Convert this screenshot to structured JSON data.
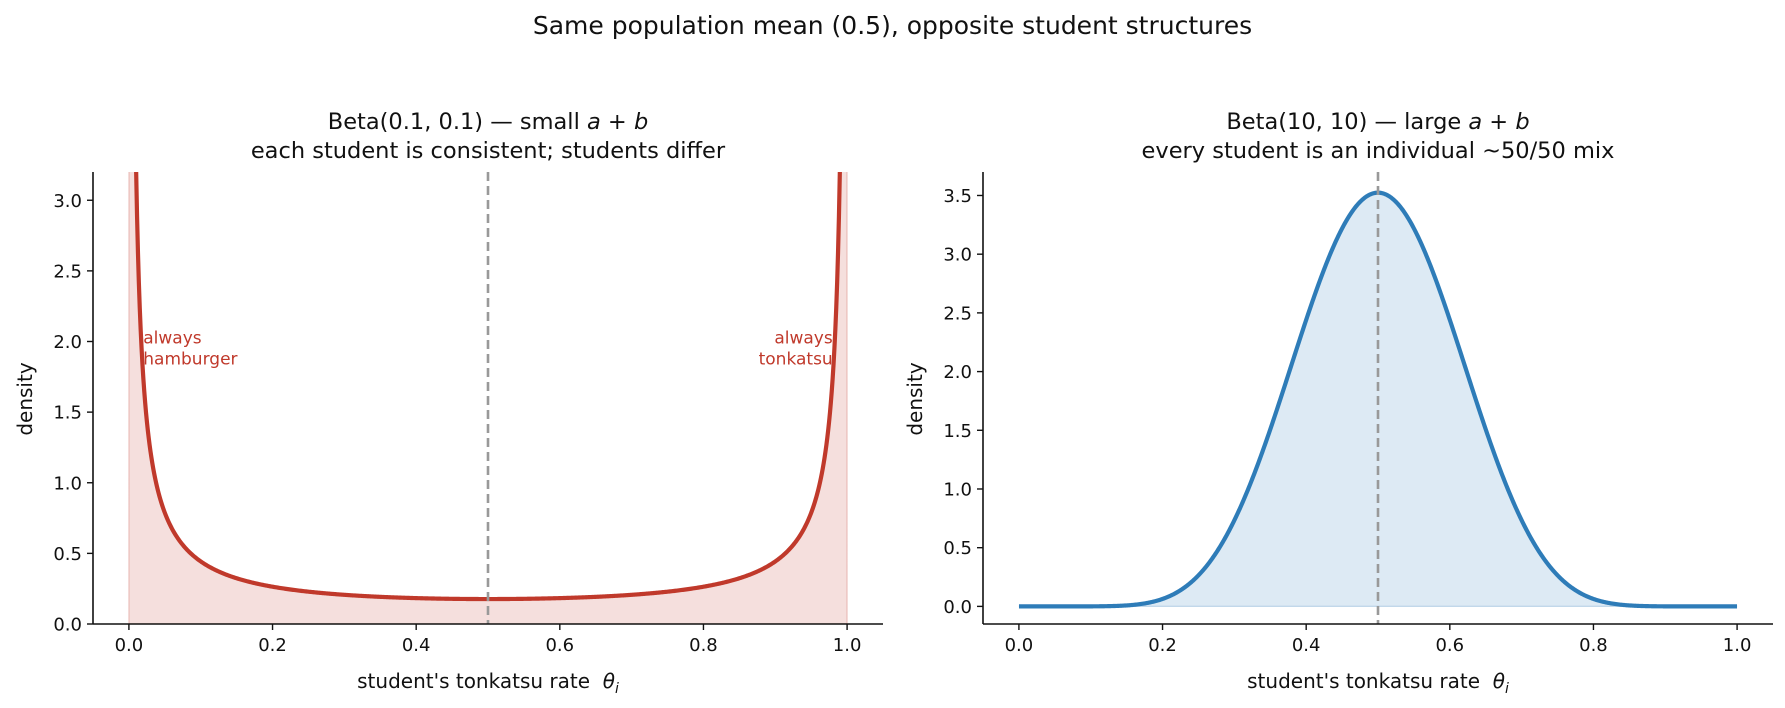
{
  "figure": {
    "suptitle": "Same population mean (0.5), opposite student structures"
  },
  "colors": {
    "red": "#c0392b",
    "blue": "#2e7cb8",
    "mean_line": "#999999"
  },
  "chart_data": [
    {
      "type": "area",
      "title_line1_prefix": "Beta(0.1, 0.1) — small ",
      "title_line2": "each student is consistent; students differ",
      "xlabel": "student's tonkatsu rate",
      "ylabel": "density",
      "distribution": {
        "family": "beta",
        "a": 0.1,
        "b": 0.1
      },
      "xlim": [
        -0.05,
        1.05
      ],
      "ylim": [
        0,
        3.2
      ],
      "xticks": [
        "0.0",
        "0.2",
        "0.4",
        "0.6",
        "0.8",
        "1.0"
      ],
      "yticks": [
        "0.0",
        "0.5",
        "1.0",
        "1.5",
        "2.0",
        "2.5",
        "3.0"
      ],
      "mean_line_x": 0.5,
      "annotations": [
        {
          "lines": [
            "always",
            "hamburger"
          ],
          "x": 0.02,
          "y": 1.9,
          "align": "left"
        },
        {
          "lines": [
            "always",
            "tonkatsu"
          ],
          "x": 0.98,
          "y": 1.9,
          "align": "right"
        }
      ],
      "color": "#c0392b"
    },
    {
      "type": "area",
      "title_line1_prefix": "Beta(10, 10) — large ",
      "title_line2": "every student is an individual ~50/50 mix",
      "xlabel": "student's tonkatsu rate",
      "ylabel": "density",
      "distribution": {
        "family": "beta",
        "a": 10,
        "b": 10
      },
      "xlim": [
        -0.05,
        1.05
      ],
      "ylim": [
        -0.15,
        3.7
      ],
      "xticks": [
        "0.0",
        "0.2",
        "0.4",
        "0.6",
        "0.8",
        "1.0"
      ],
      "yticks": [
        "0.0",
        "0.5",
        "1.0",
        "1.5",
        "2.0",
        "2.5",
        "3.0",
        "3.5"
      ],
      "mean_line_x": 0.5,
      "annotations": [],
      "color": "#2e7cb8"
    }
  ]
}
